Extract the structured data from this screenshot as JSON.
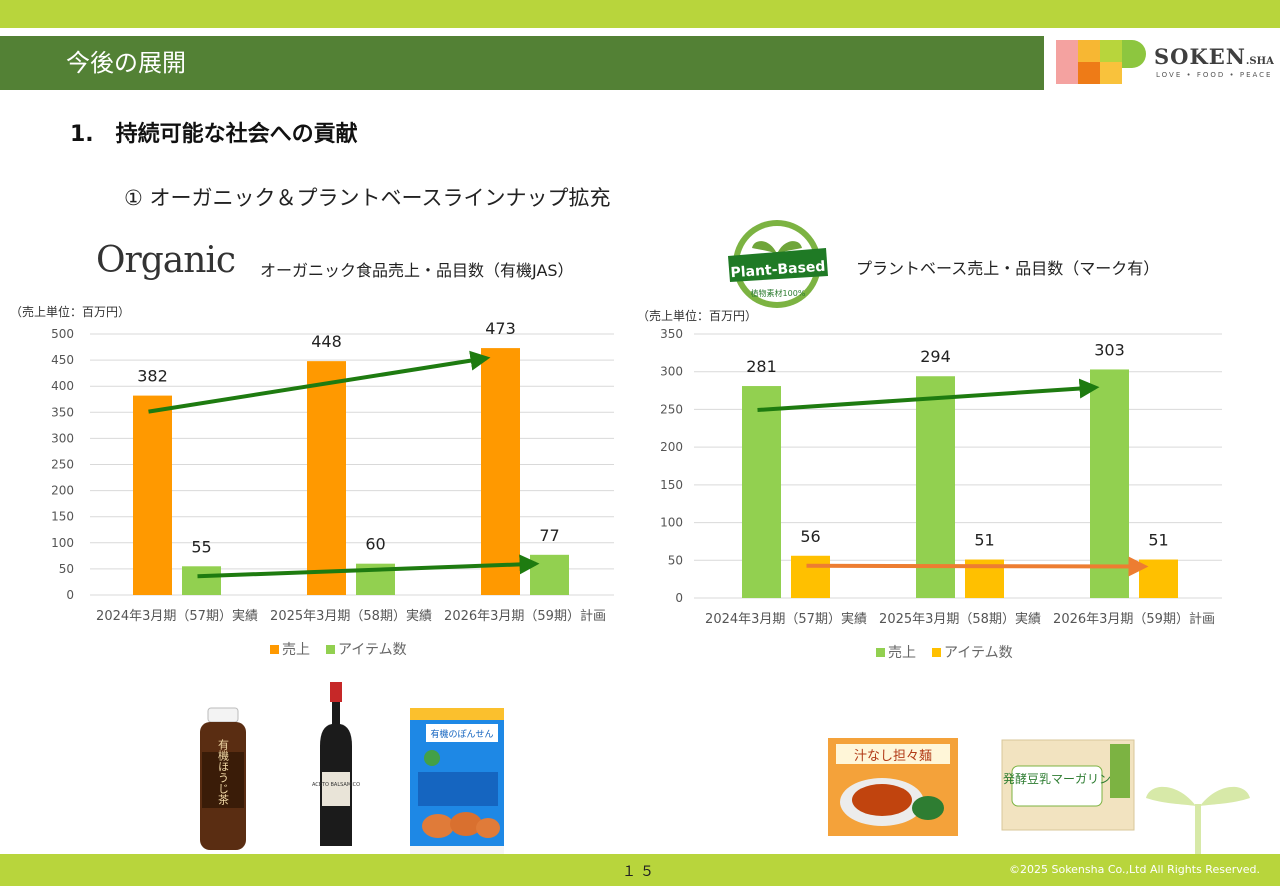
{
  "header": {
    "title": "今後の展開"
  },
  "brand": {
    "name": "SOKEN",
    "suffix": ".SHA",
    "tagline": "LOVE • FOOD • PEACE"
  },
  "section": {
    "heading": "1.　持続可能な社会への貢献",
    "subheading": "① オーガニック＆プラントベースラインナップ拡充"
  },
  "organic": {
    "logo_text": "Organic",
    "caption": "オーガニック食品売上・品目数（有機JAS）"
  },
  "plant_based": {
    "badge_text": "Plant-Based",
    "badge_subtext": "植物素材100%",
    "caption": "プラントベース売上・品目数（マーク有）"
  },
  "products_left": [
    {
      "name": "有機ほうじ茶"
    },
    {
      "name": "ACETO BALSAMICO"
    },
    {
      "name": "有機のぽんせん"
    }
  ],
  "products_right": [
    {
      "name": "汁なし担々麺"
    },
    {
      "name": "発酵豆乳マーガリン"
    }
  ],
  "footer": {
    "page_number": "１５",
    "copyright": "©2025 Sokensha Co.,Ltd All Rights Reserved."
  },
  "colors": {
    "orange": "#ff9900",
    "green_bar": "#92d050",
    "yellow": "#ffc000",
    "arrow_green": "#1e7b10",
    "arrow_orange": "#ed7d31",
    "header_green": "#538135",
    "band_green": "#b8d53c"
  },
  "chart_data": [
    {
      "type": "bar",
      "unit_label": "（売上単位：百万円）",
      "categories": [
        "2024年3月期（57期）実績",
        "2025年3月期（58期）実績",
        "2026年3月期（59期）計画"
      ],
      "series": [
        {
          "name": "売上",
          "values": [
            382,
            448,
            473
          ],
          "color": "#ff9900"
        },
        {
          "name": "アイテム数",
          "values": [
            55,
            60,
            77
          ],
          "color": "#92d050"
        }
      ],
      "ylim": [
        0,
        500
      ],
      "yticks": [
        0,
        50,
        100,
        150,
        200,
        250,
        300,
        350,
        400,
        450,
        500
      ],
      "legend_position": "bottom",
      "grid": true,
      "trend_arrows": [
        {
          "series": "売上",
          "color": "#1e7b10"
        },
        {
          "series": "アイテム数",
          "color": "#1e7b10"
        }
      ]
    },
    {
      "type": "bar",
      "unit_label": "（売上単位：百万円）",
      "categories": [
        "2024年3月期（57期）実績",
        "2025年3月期（58期）実績",
        "2026年3月期（59期）計画"
      ],
      "series": [
        {
          "name": "売上",
          "values": [
            281,
            294,
            303
          ],
          "color": "#92d050"
        },
        {
          "name": "アイテム数",
          "values": [
            56,
            51,
            51
          ],
          "color": "#ffc000"
        }
      ],
      "ylim": [
        0,
        350
      ],
      "yticks": [
        0,
        50,
        100,
        150,
        200,
        250,
        300,
        350
      ],
      "legend_position": "bottom",
      "grid": true,
      "trend_arrows": [
        {
          "series": "売上",
          "color": "#1e7b10"
        },
        {
          "series": "アイテム数",
          "color": "#ed7d31"
        }
      ]
    }
  ]
}
